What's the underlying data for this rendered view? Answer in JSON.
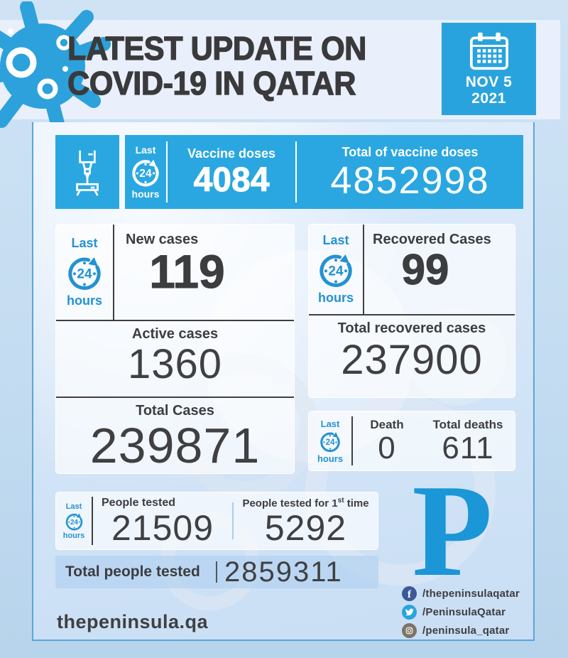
{
  "header": {
    "title_line1": "LATEST UPDATE ON",
    "title_line2": "COVID-19 IN QATAR",
    "date_line1": "NOV 5",
    "date_line2": "2021"
  },
  "last24": {
    "top": "Last",
    "clock_number": "24",
    "bottom": "hours"
  },
  "vaccine_banner": {
    "doses_label": "Vaccine doses",
    "doses_value": "4084",
    "total_label": "Total of vaccine doses",
    "total_value": "4852998"
  },
  "cases_card": {
    "new_label": "New cases",
    "new_value": "119",
    "active_label": "Active cases",
    "active_value": "1360",
    "total_label": "Total Cases",
    "total_value": "239871"
  },
  "recovered_card": {
    "new_label": "Recovered Cases",
    "new_value": "99",
    "total_label": "Total recovered cases",
    "total_value": "237900"
  },
  "deaths_card": {
    "new_label": "Death",
    "new_value": "0",
    "total_label": "Total deaths",
    "total_value": "611"
  },
  "testing_card": {
    "tested_label": "People tested",
    "tested_value": "21509",
    "first_label_prefix": "People tested for 1",
    "first_label_sup": "st",
    "first_label_suffix": " time",
    "first_value": "5292",
    "total_label": "Total people tested",
    "total_value": "2859311"
  },
  "footer": {
    "logo_letter": "P",
    "website": "thepeninsula.qa",
    "socials": [
      {
        "network": "facebook",
        "handle": "/thepeninsulaqatar"
      },
      {
        "network": "twitter",
        "handle": "/PeninsulaQatar"
      },
      {
        "network": "instagram",
        "handle": "/peninsula_qatar"
      }
    ]
  },
  "colors": {
    "primary_blue": "#2aa7e0",
    "calendar_blue": "#29a3dd",
    "clock_blue": "#2492d2",
    "dark_text": "#3c3d3f",
    "panel_border": "#58a7db",
    "logo_blue": "#1b96d6",
    "facebook": "#3b5998",
    "twitter": "#2aa3dd",
    "instagram": "#7d7468"
  }
}
